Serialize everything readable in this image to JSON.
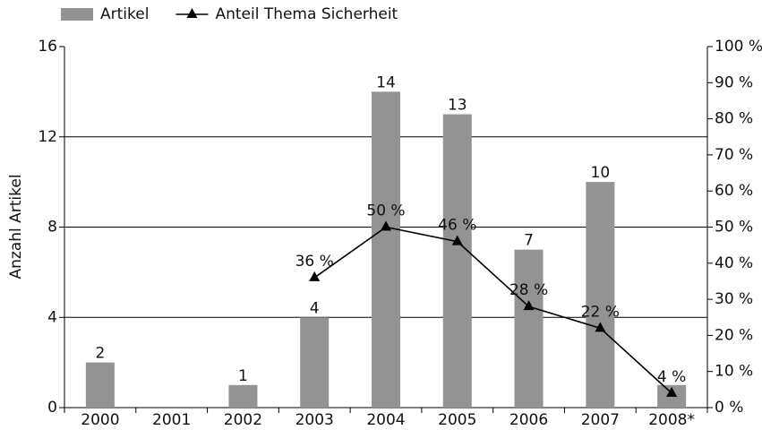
{
  "chart_data": {
    "type": "bar_line",
    "legend": "top-left",
    "y_label": "Anzahl Artikel",
    "categories": [
      "2000",
      "2001",
      "2002",
      "2003",
      "2004",
      "2005",
      "2006",
      "2007",
      "2008*"
    ],
    "series": [
      {
        "name": "Artikel",
        "type": "bar",
        "color": "#939393",
        "values": [
          2,
          null,
          1,
          4,
          14,
          13,
          7,
          10,
          1
        ],
        "value_labels": [
          "2",
          null,
          "1",
          "4",
          "14",
          "13",
          "7",
          "10",
          null
        ]
      },
      {
        "name": "Anteil Thema Sicherheit",
        "type": "line",
        "axis": "y2",
        "color": "#000000",
        "values": [
          null,
          null,
          null,
          36,
          50,
          46,
          28,
          22,
          4
        ],
        "value_labels": [
          null,
          null,
          null,
          "36 %",
          "50 %",
          "46 %",
          "28 %",
          "22 %",
          "4 %"
        ]
      }
    ],
    "ylim": [
      0,
      16
    ],
    "yticks": [
      0,
      4,
      8,
      12,
      16
    ],
    "y2lim": [
      0,
      100
    ],
    "y2ticks": [
      {
        "value": 0,
        "label": "0 %"
      },
      {
        "value": 10,
        "label": "10 %"
      },
      {
        "value": 20,
        "label": "20 %"
      },
      {
        "value": 30,
        "label": "30 %"
      },
      {
        "value": 40,
        "label": "40 %"
      },
      {
        "value": 50,
        "label": "50 %"
      },
      {
        "value": 60,
        "label": "60 %"
      },
      {
        "value": 70,
        "label": "70 %"
      },
      {
        "value": 80,
        "label": "80 %"
      },
      {
        "value": 90,
        "label": "90 %"
      },
      {
        "value": 100,
        "label": "100 %"
      }
    ],
    "grid": true
  }
}
